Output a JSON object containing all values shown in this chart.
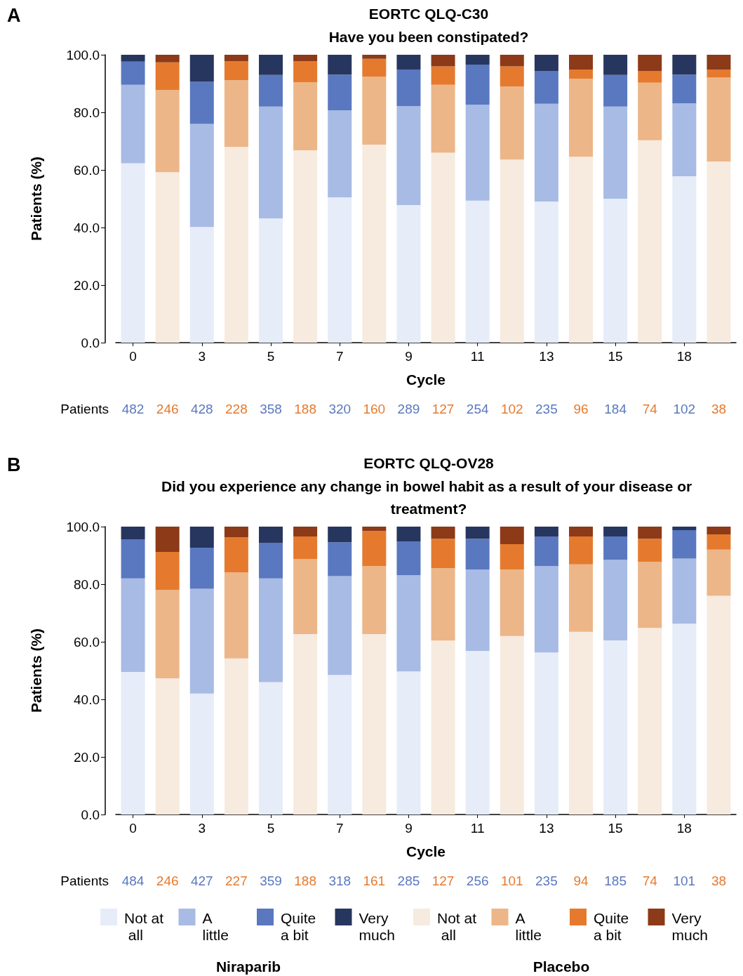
{
  "chart_data": [
    {
      "type": "bar",
      "stacked": true,
      "title": "EORTC QLQ-C30",
      "subtitle": "Have you been constipated?",
      "xlabel": "Cycle",
      "ylabel": "Patients (%)",
      "categories": [
        "0",
        null,
        "3",
        null,
        "5",
        null,
        "7",
        null,
        "9",
        null,
        "11",
        null,
        "13",
        null,
        "15",
        null,
        "18",
        null
      ],
      "ylim": [
        0,
        100
      ],
      "yticks": [
        {
          "value": 0,
          "label": "0.0"
        },
        {
          "value": 20,
          "label": "20.0"
        },
        {
          "value": 40,
          "label": "40.0"
        },
        {
          "value": 60,
          "label": "60.0"
        },
        {
          "value": 80,
          "label": "80.0"
        },
        {
          "value": 100,
          "label": "100.0"
        }
      ],
      "grid": false,
      "legend": false,
      "annotations": [
        "A",
        "Patients",
        "482",
        "246",
        "428",
        "228",
        "358",
        "188",
        "320",
        "160",
        "289",
        "127",
        "254",
        "102",
        "235",
        "96",
        "184",
        "74",
        "102",
        "38"
      ],
      "series": [
        {
          "color": "#e6ecf8",
          "values": [
            62.3,
            null,
            40.2,
            null,
            43.2,
            null,
            50.5,
            null,
            47.8,
            null,
            49.3,
            null,
            49.0,
            null,
            50.0,
            null,
            57.8,
            null
          ]
        },
        {
          "color": "#a8bbe4",
          "values": [
            27.3,
            null,
            35.8,
            null,
            38.8,
            null,
            30.2,
            null,
            34.4,
            null,
            33.4,
            null,
            34.0,
            null,
            32.0,
            null,
            25.3,
            null
          ]
        },
        {
          "color": "#5a78c0",
          "values": [
            8.0,
            null,
            14.6,
            null,
            11.0,
            null,
            12.4,
            null,
            12.7,
            null,
            13.9,
            null,
            11.4,
            null,
            11.0,
            null,
            10.0,
            null
          ]
        },
        {
          "color": "#27365e",
          "values": [
            2.4,
            null,
            9.4,
            null,
            7.0,
            null,
            6.9,
            null,
            5.1,
            null,
            3.4,
            null,
            5.6,
            null,
            7.0,
            null,
            6.9,
            null
          ]
        },
        {
          "color": "#f7eadf",
          "values": [
            null,
            59.2,
            null,
            68.0,
            null,
            66.8,
            null,
            68.8,
            null,
            66.0,
            null,
            63.6,
            null,
            64.6,
            null,
            70.3,
            null,
            62.9
          ]
        },
        {
          "color": "#ecb688",
          "values": [
            null,
            28.6,
            null,
            23.2,
            null,
            23.6,
            null,
            23.6,
            null,
            23.6,
            null,
            25.4,
            null,
            27.1,
            null,
            20.0,
            null,
            29.2
          ]
        },
        {
          "color": "#e57a2e",
          "values": [
            null,
            9.6,
            null,
            6.6,
            null,
            7.4,
            null,
            6.2,
            null,
            6.4,
            null,
            7.0,
            null,
            3.2,
            null,
            4.1,
            null,
            2.7
          ]
        },
        {
          "color": "#8c3a18",
          "values": [
            null,
            2.6,
            null,
            2.2,
            null,
            2.2,
            null,
            1.4,
            null,
            4.0,
            null,
            4.0,
            null,
            5.1,
            null,
            5.6,
            null,
            5.2
          ]
        }
      ]
    },
    {
      "type": "bar",
      "stacked": true,
      "title": "EORTC QLQ-OV28",
      "subtitle": "Did you experience any change in bowel habit as a result of your disease or treatment?",
      "xlabel": "Cycle",
      "ylabel": "Patients (%)",
      "categories": [
        "0",
        null,
        "3",
        null,
        "5",
        null,
        "7",
        null,
        "9",
        null,
        "11",
        null,
        "13",
        null,
        "15",
        null,
        "18",
        null
      ],
      "ylim": [
        0,
        100
      ],
      "yticks": [
        {
          "value": 0,
          "label": "0.0"
        },
        {
          "value": 20,
          "label": "20.0"
        },
        {
          "value": 40,
          "label": "40.0"
        },
        {
          "value": 60,
          "label": "60.0"
        },
        {
          "value": 80,
          "label": "80.0"
        },
        {
          "value": 100,
          "label": "100.0"
        }
      ],
      "grid": false,
      "legend": "bottom",
      "annotations": [
        "B",
        "Patients",
        "484",
        "246",
        "427",
        "227",
        "359",
        "188",
        "318",
        "161",
        "285",
        "127",
        "256",
        "101",
        "235",
        "94",
        "185",
        "74",
        "101",
        "38",
        "Niraparib",
        "Placebo"
      ],
      "series": [
        {
          "name": "Not at all",
          "color": "#e6ecf8",
          "values": [
            49.5,
            null,
            42.0,
            null,
            46.0,
            null,
            48.5,
            null,
            49.7,
            null,
            56.8,
            null,
            56.3,
            null,
            60.5,
            null,
            66.3,
            null
          ]
        },
        {
          "name": "A little",
          "color": "#a8bbe4",
          "values": [
            32.5,
            null,
            36.4,
            null,
            36.0,
            null,
            34.3,
            null,
            33.4,
            null,
            28.3,
            null,
            30.0,
            null,
            28.0,
            null,
            22.6,
            null
          ]
        },
        {
          "name": "Quite a bit",
          "color": "#5a78c0",
          "values": [
            13.6,
            null,
            14.3,
            null,
            12.4,
            null,
            11.8,
            null,
            11.8,
            null,
            10.7,
            null,
            10.3,
            null,
            8.1,
            null,
            9.9,
            null
          ]
        },
        {
          "name": "Very much",
          "color": "#27365e",
          "values": [
            4.4,
            null,
            7.3,
            null,
            5.6,
            null,
            5.4,
            null,
            5.1,
            null,
            4.2,
            null,
            3.4,
            null,
            3.4,
            null,
            1.2,
            null
          ]
        },
        {
          "name": "Not at all",
          "color": "#f7eadf",
          "values": [
            null,
            47.3,
            null,
            54.2,
            null,
            62.7,
            null,
            62.7,
            null,
            60.4,
            null,
            62.0,
            null,
            63.5,
            null,
            64.8,
            null,
            76.0
          ]
        },
        {
          "name": "A little",
          "color": "#ecb688",
          "values": [
            null,
            30.7,
            null,
            29.9,
            null,
            26.1,
            null,
            23.6,
            null,
            25.2,
            null,
            23.1,
            null,
            23.4,
            null,
            23.0,
            null,
            16.0
          ]
        },
        {
          "name": "Quite a bit",
          "color": "#e57a2e",
          "values": [
            null,
            13.2,
            null,
            12.2,
            null,
            7.8,
            null,
            12.2,
            null,
            10.2,
            null,
            8.8,
            null,
            9.7,
            null,
            8.0,
            null,
            5.3
          ]
        },
        {
          "name": "Very much",
          "color": "#8c3a18",
          "values": [
            null,
            8.8,
            null,
            3.7,
            null,
            3.4,
            null,
            1.5,
            null,
            4.2,
            null,
            6.1,
            null,
            3.4,
            null,
            4.2,
            null,
            2.7
          ]
        }
      ]
    }
  ]
}
